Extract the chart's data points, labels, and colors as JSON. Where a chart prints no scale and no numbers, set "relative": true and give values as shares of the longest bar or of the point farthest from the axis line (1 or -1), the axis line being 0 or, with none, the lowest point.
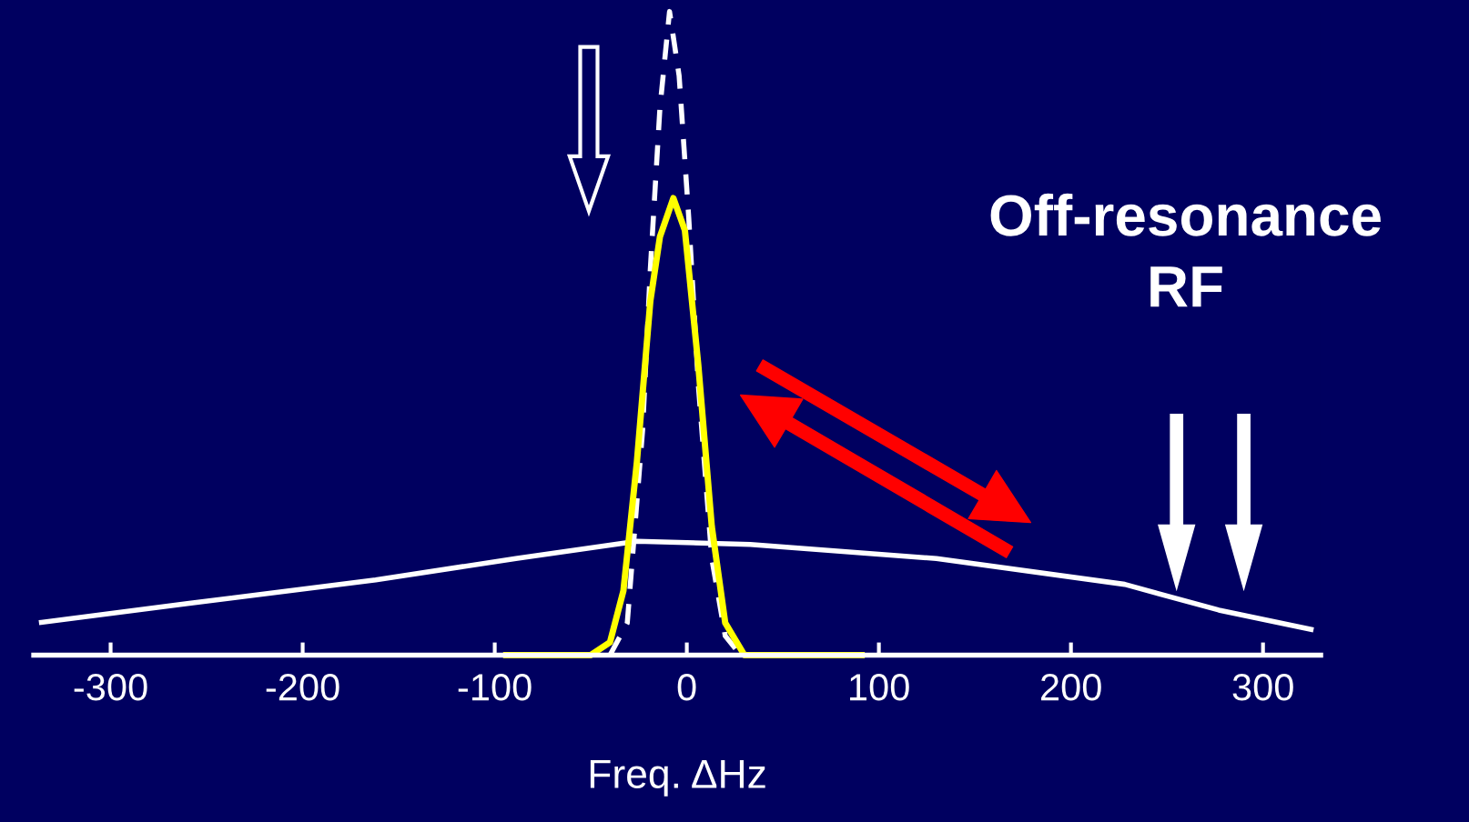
{
  "chart_data": {
    "type": "line",
    "relative": true,
    "xlabel": "Freq. ΔHz",
    "xlim": [
      -340,
      330
    ],
    "xticks": [
      -300,
      -200,
      -100,
      0,
      100,
      200,
      300
    ],
    "grid": false,
    "legend": false,
    "marker": "none",
    "annotations": [
      "Off-resonance\nRF"
    ],
    "series": [
      {
        "color": "#ffffff",
        "line_style": "solid",
        "x": [
          -336,
          -260,
          -162,
          -89,
          -26,
          33,
          130,
          228,
          277,
          325
        ],
        "values": [
          0.051,
          0.08,
          0.117,
          0.15,
          0.177,
          0.172,
          0.15,
          0.11,
          0.07,
          0.04
        ]
      },
      {
        "color": "#ffffff",
        "line_style": "dashed",
        "x": [
          -40,
          -31,
          -23,
          -19,
          -14,
          -9,
          -4,
          1,
          6,
          13,
          20,
          28
        ],
        "values": [
          0,
          0.05,
          0.35,
          0.6,
          0.85,
          1.0,
          0.9,
          0.68,
          0.42,
          0.15,
          0.03,
          0
        ]
      },
      {
        "color": "#ffff00",
        "line_style": "solid",
        "x": [
          -94,
          -50,
          -40,
          -33,
          -26,
          -19,
          -14,
          -7,
          -1,
          6,
          13,
          20,
          30,
          91
        ],
        "values": [
          0,
          0,
          0.02,
          0.1,
          0.3,
          0.55,
          0.65,
          0.71,
          0.66,
          0.45,
          0.2,
          0.05,
          0,
          0
        ]
      }
    ]
  }
}
